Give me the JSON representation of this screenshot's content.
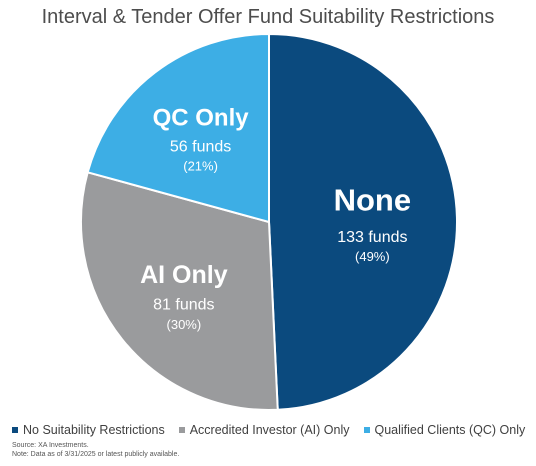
{
  "chart_data": {
    "type": "pie",
    "title": "Interval & Tender Offer Fund Suitability Restrictions",
    "slices": [
      {
        "label": "None",
        "value": 133,
        "value_label": "133 funds",
        "percent_label": "(49%)",
        "legend": "No Suitability Restrictions",
        "color": "#0b4a7e"
      },
      {
        "label": "AI Only",
        "value": 81,
        "value_label": "81 funds",
        "percent_label": "(30%)",
        "legend": "Accredited Investor (AI) Only",
        "color": "#9a9b9d"
      },
      {
        "label": "QC Only",
        "value": 56,
        "value_label": "56 funds",
        "percent_label": "(21%)",
        "legend": "Qualified Clients (QC) Only",
        "color": "#3daee5"
      }
    ],
    "legend_position": "bottom",
    "source": "Source: XA Investments.",
    "note": "Note: Data as of 3/31/2025 or latest publicly available."
  }
}
